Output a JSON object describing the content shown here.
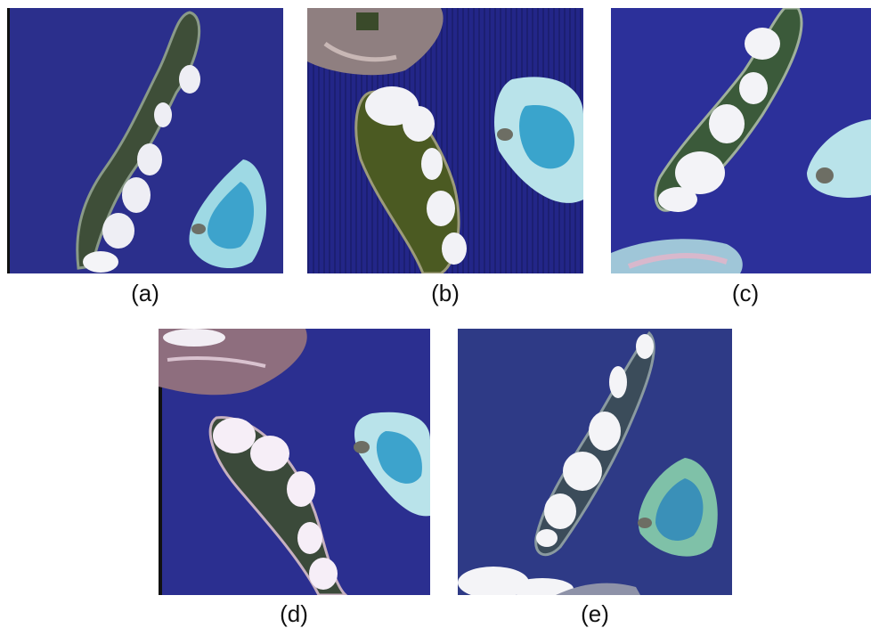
{
  "figure": {
    "panels": [
      {
        "id": "a",
        "caption": "(a)",
        "description": "elongated island with clouds and atoll"
      },
      {
        "id": "b",
        "caption": "(b)",
        "description": "green island with clouds, atoll and reef"
      },
      {
        "id": "c",
        "caption": "(c)",
        "description": "island diagonal with clouds and atoll"
      },
      {
        "id": "d",
        "caption": "(d)",
        "description": "pinkish island with clouds and atoll"
      },
      {
        "id": "e",
        "caption": "(e)",
        "description": "narrow island with clouds and green atoll"
      }
    ],
    "colors": {
      "ocean": "#2a2f8f",
      "ocean_dark": "#1c1f6a",
      "land_green": "#4a5a3a",
      "reef_light": "#8fd6e0",
      "lagoon": "#3aa0c8",
      "cloud": "#f2f2f5",
      "sand": "#b9a58f"
    }
  }
}
